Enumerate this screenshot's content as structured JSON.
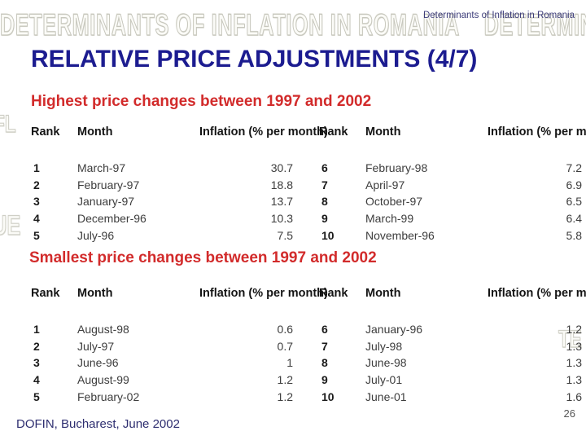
{
  "header": {
    "watermark": "DETERMINANTS OF INFLATION IN ROMANIA    DETERMINANTS",
    "corner_text": "Determinants of Inflation in Romania"
  },
  "title": "RELATIVE PRICE ADJUSTMENTS (4/7)",
  "sections": [
    {
      "heading": "Highest price changes between 1997 and 2002",
      "columns": [
        "Rank",
        "Month",
        "Inflation (% per month)"
      ],
      "left_rows": [
        [
          "1",
          "March-97",
          "30.7"
        ],
        [
          "2",
          "February-97",
          "18.8"
        ],
        [
          "3",
          "January-97",
          "13.7"
        ],
        [
          "4",
          "December-96",
          "10.3"
        ],
        [
          "5",
          "July-96",
          "7.5"
        ]
      ],
      "right_rows": [
        [
          "6",
          "February-98",
          "7.2"
        ],
        [
          "7",
          "April-97",
          "6.9"
        ],
        [
          "8",
          "October-97",
          "6.5"
        ],
        [
          "9",
          "March-99",
          "6.4"
        ],
        [
          "10",
          "November-96",
          "5.8"
        ]
      ]
    },
    {
      "heading": "Smallest price changes between 1997 and 2002",
      "columns": [
        "Rank",
        "Month",
        "Inflation (% per month)"
      ],
      "left_rows": [
        [
          "1",
          "August-98",
          "0.6"
        ],
        [
          "2",
          "July-97",
          "0.7"
        ],
        [
          "3",
          "June-96",
          "1"
        ],
        [
          "4",
          "August-99",
          "1.2"
        ],
        [
          "5",
          "February-02",
          "1.2"
        ]
      ],
      "right_rows": [
        [
          "6",
          "January-96",
          "1.2"
        ],
        [
          "7",
          "July-98",
          "1.3"
        ],
        [
          "8",
          "June-98",
          "1.3"
        ],
        [
          "9",
          "July-01",
          "1.3"
        ],
        [
          "10",
          "June-01",
          "1.6"
        ]
      ]
    }
  ],
  "watermark_fragments": [
    "FL",
    "UE",
    "TE"
  ],
  "footer": {
    "credit": "DOFIN, Bucharest, June 2002",
    "page_number": "26"
  },
  "colors": {
    "title_navy": "#1c1c90",
    "heading_red": "#d22b2b",
    "corner_navy": "#3c3c7a",
    "footer_navy": "#2e2e70",
    "watermark_gray": "#c7c7bd",
    "body_text": "#3d3d3d"
  }
}
